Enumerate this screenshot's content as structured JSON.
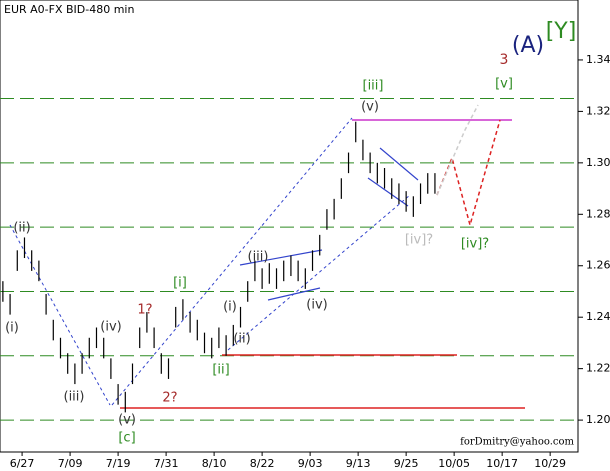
{
  "chart_data": {
    "type": "ohlc",
    "title": "EUR A0-FX BID-480 min",
    "footer": "forDmitry@yahoo.com",
    "x": [
      -0.4,
      -0.25,
      -0.1,
      0.05,
      0.2,
      0.35,
      0.5,
      0.65,
      0.8,
      0.95,
      1.1,
      1.25,
      1.4,
      1.55,
      1.7,
      1.85,
      2.0,
      2.15,
      2.3,
      2.45,
      2.6,
      2.75,
      2.9,
      3.05,
      3.2,
      3.35,
      3.5,
      3.65,
      3.8,
      3.95,
      4.1,
      4.25,
      4.4,
      4.55,
      4.7,
      4.85,
      5.0,
      5.15,
      5.3,
      5.45,
      5.6,
      5.75,
      5.9,
      6.05,
      6.2,
      6.35,
      6.5,
      6.65,
      6.8,
      6.95,
      7.1,
      7.25,
      7.4,
      7.55,
      7.7,
      7.85,
      8.0,
      8.15,
      8.3,
      8.45,
      8.6
    ],
    "high": [
      1.254,
      1.249,
      1.266,
      1.271,
      1.266,
      1.262,
      1.249,
      1.239,
      1.232,
      1.226,
      1.222,
      1.226,
      1.232,
      1.236,
      1.232,
      1.224,
      1.214,
      1.211,
      1.222,
      1.236,
      1.242,
      1.236,
      1.226,
      1.224,
      1.244,
      1.247,
      1.242,
      1.239,
      1.234,
      1.232,
      1.236,
      1.233,
      1.237,
      1.244,
      1.254,
      1.262,
      1.259,
      1.261,
      1.259,
      1.262,
      1.264,
      1.262,
      1.259,
      1.266,
      1.272,
      1.282,
      1.286,
      1.294,
      1.304,
      1.316,
      1.309,
      1.304,
      1.3,
      1.298,
      1.294,
      1.292,
      1.289,
      1.287,
      1.292,
      1.296,
      1.296
    ],
    "low": [
      1.246,
      1.241,
      1.258,
      1.263,
      1.258,
      1.254,
      1.241,
      1.231,
      1.224,
      1.218,
      1.214,
      1.218,
      1.224,
      1.228,
      1.224,
      1.216,
      1.206,
      1.203,
      1.214,
      1.228,
      1.234,
      1.228,
      1.218,
      1.216,
      1.236,
      1.239,
      1.234,
      1.231,
      1.226,
      1.224,
      1.228,
      1.225,
      1.229,
      1.236,
      1.246,
      1.254,
      1.251,
      1.253,
      1.251,
      1.254,
      1.256,
      1.254,
      1.251,
      1.258,
      1.264,
      1.274,
      1.278,
      1.286,
      1.296,
      1.308,
      1.301,
      1.296,
      1.292,
      1.29,
      1.286,
      1.284,
      1.281,
      1.279,
      1.284,
      1.288,
      1.288
    ],
    "ylim": [
      1.1876,
      1.3633
    ],
    "yticks": [
      {
        "value": 1.2,
        "label": "1.20"
      },
      {
        "value": 1.22,
        "label": "1.22"
      },
      {
        "value": 1.24,
        "label": "1.24"
      },
      {
        "value": 1.26,
        "label": "1.26"
      },
      {
        "value": 1.28,
        "label": "1.28"
      },
      {
        "value": 1.3,
        "label": "1.30"
      },
      {
        "value": 1.32,
        "label": "1.32"
      },
      {
        "value": 1.34,
        "label": "1.34"
      }
    ],
    "levels": [
      1.2,
      1.225,
      1.25,
      1.275,
      1.3,
      1.325
    ],
    "xlim": [
      -0.46,
      11.58
    ],
    "xticks": [
      {
        "value": 0,
        "label": "6/27"
      },
      {
        "value": 1,
        "label": "7/09"
      },
      {
        "value": 2,
        "label": "7/19"
      },
      {
        "value": 3,
        "label": "7/31"
      },
      {
        "value": 4,
        "label": "8/10"
      },
      {
        "value": 5,
        "label": "8/22"
      },
      {
        "value": 6,
        "label": "9/03"
      },
      {
        "value": 7,
        "label": "9/13"
      },
      {
        "value": 8,
        "label": "9/25"
      },
      {
        "value": 9,
        "label": "10/05"
      },
      {
        "value": 10,
        "label": "10/17"
      },
      {
        "value": 11,
        "label": "10/29"
      }
    ],
    "annotations": [
      {
        "text": "(ii)",
        "color": "#333333"
      },
      {
        "text": "(i)",
        "color": "#333333"
      },
      {
        "text": "(iii)",
        "color": "#333333"
      },
      {
        "text": "(iv)",
        "color": "#333333"
      },
      {
        "text": "(v)",
        "color": "#333333"
      },
      {
        "text": "[c]",
        "color": "#2e8b22"
      },
      {
        "text": "1?",
        "color": "#a52a2a"
      },
      {
        "text": "2?",
        "color": "#a52a2a"
      },
      {
        "text": "[i]",
        "color": "#2e8b22"
      },
      {
        "text": "[ii]",
        "color": "#2e8b22"
      },
      {
        "text": "(i)",
        "color": "#333333"
      },
      {
        "text": "(ii)",
        "color": "#333333"
      },
      {
        "text": "(iii)",
        "color": "#333333"
      },
      {
        "text": "(iv)",
        "color": "#333333"
      },
      {
        "text": "(v)",
        "color": "#333333"
      },
      {
        "text": "[iii]",
        "color": "#2e8b22"
      },
      {
        "text": "[iv]?",
        "color": "#bbbbbb"
      },
      {
        "text": "[iv]?",
        "color": "#2e8b22"
      },
      {
        "text": "[v]",
        "color": "#2e8b22"
      },
      {
        "text": "3",
        "color": "#a52a2a"
      },
      {
        "text": "(A)",
        "color": "#1a237e"
      },
      {
        "text": "[Y]",
        "color": "#2e8b22"
      }
    ]
  }
}
